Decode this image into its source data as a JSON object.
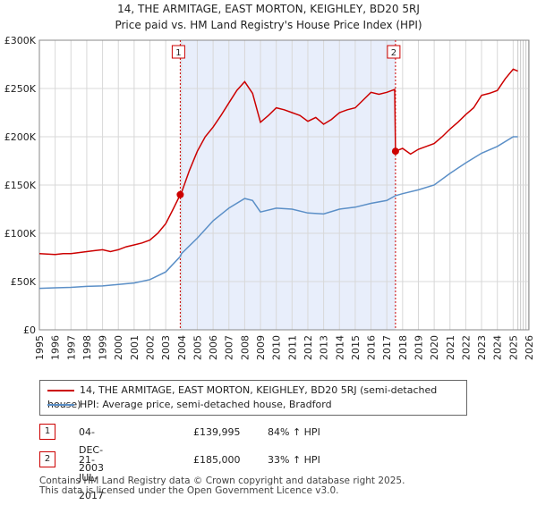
{
  "title_line1": "14, THE ARMITAGE, EAST MORTON, KEIGHLEY, BD20 5RJ",
  "title_line2": "Price paid vs. HM Land Registry's House Price Index (HPI)",
  "chart_data": {
    "type": "line",
    "ylim": [
      0,
      300000
    ],
    "xlim": [
      1995,
      2026
    ],
    "yticks": [
      {
        "v": 0,
        "label": "£0"
      },
      {
        "v": 50000,
        "label": "£50K"
      },
      {
        "v": 100000,
        "label": "£100K"
      },
      {
        "v": 150000,
        "label": "£150K"
      },
      {
        "v": 200000,
        "label": "£200K"
      },
      {
        "v": 250000,
        "label": "£250K"
      },
      {
        "v": 300000,
        "label": "£300K"
      }
    ],
    "xticks": [
      "1995",
      "1996",
      "1997",
      "1998",
      "1999",
      "2000",
      "2001",
      "2002",
      "2003",
      "2004",
      "2005",
      "2006",
      "2007",
      "2008",
      "2009",
      "2010",
      "2011",
      "2012",
      "2013",
      "2014",
      "2015",
      "2016",
      "2017",
      "2018",
      "2019",
      "2020",
      "2021",
      "2022",
      "2023",
      "2024",
      "2025",
      "2026"
    ],
    "colors": {
      "property": "#cc0000",
      "hpi": "#5b8fc7",
      "shade": "#e8eefb",
      "grid": "#d8d8d8"
    },
    "sale_bands": [
      [
        2003.92,
        2017.55
      ]
    ],
    "series": [
      {
        "name": "14, THE ARMITAGE, EAST MORTON, KEIGHLEY, BD20 5RJ (semi-detached house)",
        "color": "#cc0000",
        "points": [
          [
            1995,
            79000
          ],
          [
            1995.5,
            78500
          ],
          [
            1996,
            78000
          ],
          [
            1996.5,
            79000
          ],
          [
            1997,
            79000
          ],
          [
            1997.5,
            80000
          ],
          [
            1998,
            81000
          ],
          [
            1998.5,
            82000
          ],
          [
            1999,
            83000
          ],
          [
            1999.5,
            81000
          ],
          [
            2000,
            83000
          ],
          [
            2000.5,
            86000
          ],
          [
            2001,
            88000
          ],
          [
            2001.5,
            90000
          ],
          [
            2002,
            93000
          ],
          [
            2002.5,
            100000
          ],
          [
            2003,
            110000
          ],
          [
            2003.5,
            126000
          ],
          [
            2003.92,
            139995
          ],
          [
            2004,
            142000
          ],
          [
            2004.5,
            165000
          ],
          [
            2005,
            185000
          ],
          [
            2005.5,
            200000
          ],
          [
            2006,
            210000
          ],
          [
            2006.5,
            222000
          ],
          [
            2007,
            235000
          ],
          [
            2007.5,
            248000
          ],
          [
            2008,
            257000
          ],
          [
            2008.5,
            245000
          ],
          [
            2009,
            215000
          ],
          [
            2009.5,
            222000
          ],
          [
            2010,
            230000
          ],
          [
            2010.5,
            228000
          ],
          [
            2011,
            225000
          ],
          [
            2011.5,
            222000
          ],
          [
            2012,
            216000
          ],
          [
            2012.5,
            220000
          ],
          [
            2013,
            213000
          ],
          [
            2013.5,
            218000
          ],
          [
            2014,
            225000
          ],
          [
            2014.5,
            228000
          ],
          [
            2015,
            230000
          ],
          [
            2015.5,
            238000
          ],
          [
            2016,
            246000
          ],
          [
            2016.5,
            244000
          ],
          [
            2017,
            246000
          ],
          [
            2017.5,
            249000
          ],
          [
            2017.55,
            185000
          ],
          [
            2018,
            188000
          ],
          [
            2018.5,
            182000
          ],
          [
            2019,
            187000
          ],
          [
            2019.5,
            190000
          ],
          [
            2020,
            193000
          ],
          [
            2020.5,
            200000
          ],
          [
            2021,
            208000
          ],
          [
            2021.5,
            215000
          ],
          [
            2022,
            223000
          ],
          [
            2022.5,
            230000
          ],
          [
            2023,
            243000
          ],
          [
            2023.5,
            245000
          ],
          [
            2024,
            248000
          ],
          [
            2024.5,
            260000
          ],
          [
            2025,
            270000
          ],
          [
            2025.3,
            268000
          ]
        ]
      },
      {
        "name": "HPI: Average price, semi-detached house, Bradford",
        "color": "#5b8fc7",
        "points": [
          [
            1995,
            43000
          ],
          [
            1996,
            43500
          ],
          [
            1997,
            44000
          ],
          [
            1998,
            45000
          ],
          [
            1999,
            45500
          ],
          [
            2000,
            47000
          ],
          [
            2001,
            48500
          ],
          [
            2002,
            52000
          ],
          [
            2003,
            60000
          ],
          [
            2003.92,
            76000
          ],
          [
            2004,
            79000
          ],
          [
            2005,
            95000
          ],
          [
            2006,
            113000
          ],
          [
            2007,
            126000
          ],
          [
            2008,
            136000
          ],
          [
            2008.5,
            134000
          ],
          [
            2009,
            122000
          ],
          [
            2010,
            126000
          ],
          [
            2011,
            125000
          ],
          [
            2012,
            121000
          ],
          [
            2013,
            120000
          ],
          [
            2014,
            125000
          ],
          [
            2015,
            127000
          ],
          [
            2016,
            131000
          ],
          [
            2017,
            134000
          ],
          [
            2017.55,
            139000
          ],
          [
            2018,
            141000
          ],
          [
            2019,
            145000
          ],
          [
            2020,
            150000
          ],
          [
            2021,
            162000
          ],
          [
            2022,
            173000
          ],
          [
            2023,
            183000
          ],
          [
            2024,
            190000
          ],
          [
            2025,
            200000
          ],
          [
            2025.3,
            200000
          ]
        ]
      }
    ],
    "markers": [
      {
        "label": "1",
        "x": 2003.92,
        "y": 139995
      },
      {
        "label": "2",
        "x": 2017.55,
        "y": 185000
      }
    ]
  },
  "legend": {
    "property": "14, THE ARMITAGE, EAST MORTON, KEIGHLEY, BD20 5RJ (semi-detached house)",
    "hpi": "HPI: Average price, semi-detached house, Bradford"
  },
  "transactions": [
    {
      "num": "1",
      "date": "04-DEC-2003",
      "price": "£139,995",
      "hpi": "84% ↑ HPI"
    },
    {
      "num": "2",
      "date": "21-JUL-2017",
      "price": "£185,000",
      "hpi": "33% ↑ HPI"
    }
  ],
  "footer_line1": "Contains HM Land Registry data © Crown copyright and database right 2025.",
  "footer_line2": "This data is licensed under the Open Government Licence v3.0."
}
